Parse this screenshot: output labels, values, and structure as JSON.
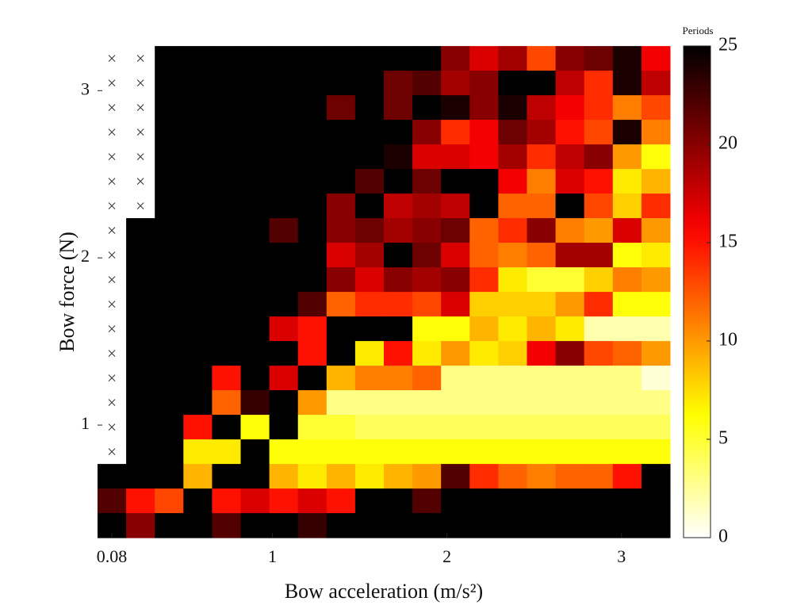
{
  "chart_data": {
    "type": "heatmap",
    "xlabel": "Bow acceleration (m/s²)",
    "ylabel": "Bow force (N)",
    "colorbar_label": "Periods",
    "colormap": "hot-reversed",
    "x": [
      0.08,
      0.244,
      0.408,
      0.572,
      0.736,
      0.9,
      1.064,
      1.228,
      1.392,
      1.556,
      1.72,
      1.884,
      2.048,
      2.212,
      2.376,
      2.54,
      2.704,
      2.868,
      3.032,
      3.196
    ],
    "y": [
      3.193,
      3.046,
      2.899,
      2.752,
      2.605,
      2.458,
      2.311,
      2.164,
      2.017,
      1.87,
      1.723,
      1.576,
      1.429,
      1.282,
      1.135,
      0.988,
      0.841,
      0.694,
      0.547,
      0.4
    ],
    "z": [
      [
        null,
        null,
        25,
        25,
        25,
        25,
        25,
        25,
        25,
        25,
        25,
        25,
        20,
        17,
        19,
        13,
        20,
        21,
        24,
        16
      ],
      [
        null,
        null,
        25,
        25,
        25,
        25,
        25,
        25,
        25,
        25,
        21,
        22,
        19,
        20,
        25,
        25,
        18,
        14,
        24,
        18
      ],
      [
        null,
        null,
        25,
        25,
        25,
        25,
        25,
        25,
        21,
        25,
        21,
        25,
        24,
        20,
        24,
        18,
        16,
        14,
        11,
        13
      ],
      [
        null,
        null,
        25,
        25,
        25,
        25,
        25,
        25,
        25,
        25,
        25,
        20,
        14,
        16,
        21,
        19,
        15,
        13,
        24,
        11
      ],
      [
        null,
        null,
        25,
        25,
        25,
        25,
        25,
        25,
        25,
        25,
        24,
        17,
        17,
        16,
        19,
        14,
        18,
        20,
        10,
        6
      ],
      [
        null,
        null,
        25,
        25,
        25,
        25,
        25,
        25,
        25,
        22,
        25,
        21,
        25,
        25,
        16,
        11,
        17,
        15,
        7,
        9
      ],
      [
        null,
        null,
        25,
        25,
        25,
        25,
        25,
        25,
        20,
        25,
        18,
        19,
        18,
        25,
        12,
        12,
        25,
        13,
        8,
        14
      ],
      [
        null,
        25,
        25,
        25,
        25,
        25,
        22,
        25,
        20,
        21,
        19,
        20,
        21,
        12,
        14,
        20,
        11,
        10,
        17,
        10
      ],
      [
        null,
        25,
        25,
        25,
        25,
        25,
        25,
        25,
        17,
        19,
        25,
        21,
        17,
        12,
        11,
        12,
        19,
        19,
        6,
        7
      ],
      [
        null,
        25,
        25,
        25,
        25,
        25,
        25,
        25,
        20,
        17,
        20,
        19,
        20,
        14,
        7,
        5,
        5,
        8,
        11,
        10
      ],
      [
        null,
        25,
        25,
        25,
        25,
        25,
        25,
        22,
        12,
        14,
        14,
        13,
        17,
        8,
        8,
        8,
        10,
        14,
        6,
        6
      ],
      [
        null,
        25,
        25,
        25,
        25,
        25,
        17,
        15,
        25,
        25,
        25,
        6,
        6,
        9,
        7,
        9,
        7,
        2,
        2,
        2
      ],
      [
        null,
        25,
        25,
        25,
        25,
        25,
        25,
        15,
        25,
        7,
        15,
        7,
        10,
        7,
        8,
        16,
        20,
        13,
        12,
        10
      ],
      [
        null,
        25,
        25,
        25,
        15,
        25,
        17,
        25,
        9,
        11,
        11,
        12,
        3,
        3,
        3,
        3,
        3,
        3,
        3,
        1
      ],
      [
        null,
        25,
        25,
        25,
        12,
        23,
        25,
        10,
        3,
        3,
        3,
        3,
        3,
        3,
        3,
        3,
        3,
        3,
        3,
        3
      ],
      [
        null,
        25,
        25,
        15,
        25,
        6,
        25,
        5,
        5,
        4,
        4,
        4,
        4,
        4,
        4,
        4,
        4,
        4,
        4,
        4
      ],
      [
        null,
        25,
        25,
        7,
        7,
        25,
        6,
        6,
        6,
        6,
        6,
        6,
        6,
        6,
        6,
        6,
        6,
        6,
        6,
        6
      ],
      [
        25,
        25,
        25,
        9,
        25,
        25,
        9,
        7,
        9,
        7,
        9,
        10,
        22,
        14,
        12,
        11,
        12,
        12,
        15,
        25
      ],
      [
        22,
        15,
        13,
        25,
        15,
        17,
        15,
        17,
        15,
        25,
        25,
        22,
        25,
        25,
        25,
        25,
        25,
        25,
        25,
        25
      ],
      [
        25,
        20,
        25,
        25,
        22,
        25,
        25,
        23,
        25,
        25,
        25,
        25,
        25,
        25,
        25,
        25,
        25,
        25,
        25,
        25
      ]
    ],
    "xlim": [
      -0.002,
      3.278
    ],
    "ylim": [
      0.327,
      3.267
    ],
    "xticks": [
      0.08,
      1,
      2,
      3
    ],
    "yticks": [
      1,
      2,
      3
    ],
    "clim": [
      0,
      25
    ],
    "cticks": [
      0,
      5,
      10,
      15,
      20,
      25
    ]
  }
}
